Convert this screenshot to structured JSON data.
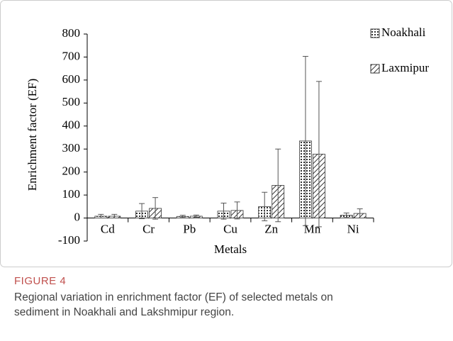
{
  "chart_data": {
    "type": "bar",
    "x_label": "Metals",
    "y_label": "Enrichment factor (EF)",
    "categories": [
      "Cd",
      "Cr",
      "Pb",
      "Cu",
      "Zn",
      "Mn",
      "Ni"
    ],
    "series": [
      {
        "name": "Noakhali",
        "color": "#333333",
        "pattern": "dots",
        "values": [
          8,
          30,
          7,
          30,
          50,
          335,
          12
        ],
        "errors": [
          8,
          33,
          5,
          35,
          62,
          368,
          10
        ]
      },
      {
        "name": "Laxmipur",
        "color": "#333333",
        "pattern": "hatch",
        "values": [
          8,
          42,
          8,
          33,
          142,
          278,
          20
        ],
        "errors": [
          8,
          47,
          5,
          37,
          158,
          316,
          20
        ]
      }
    ],
    "ylim": [
      -100,
      800
    ],
    "yticks": [
      -100,
      0,
      100,
      200,
      300,
      400,
      500,
      600,
      700,
      800
    ],
    "grid": false,
    "legend": "upper right"
  },
  "figure_label": "FIGURE 4",
  "caption_lines": [
    "Regional variation in enrichment factor (EF) of selected metals on",
    "sediment in Noakhali and Lakshmipur region."
  ]
}
